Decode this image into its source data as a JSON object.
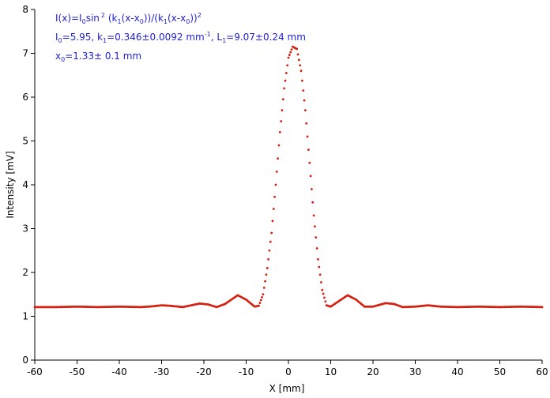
{
  "chart_data": {
    "type": "scatter",
    "title": "",
    "xlabel": "X [mm]",
    "ylabel": "Intensity [mV]",
    "xlim": [
      -60,
      60
    ],
    "ylim": [
      0,
      8
    ],
    "x_ticks": [
      -60,
      -50,
      -40,
      -30,
      -20,
      -10,
      0,
      10,
      20,
      30,
      40,
      50,
      60
    ],
    "y_ticks": [
      0,
      1,
      2,
      3,
      4,
      5,
      6,
      7,
      8
    ],
    "grid": false,
    "legend": "none",
    "series": [
      {
        "color": "#d42010",
        "marker": "dot",
        "baseline": 1.2,
        "peak": 7.15,
        "points": [
          [
            -60,
            1.21
          ],
          [
            -55,
            1.21
          ],
          [
            -50,
            1.22
          ],
          [
            -45,
            1.21
          ],
          [
            -40,
            1.22
          ],
          [
            -35,
            1.21
          ],
          [
            -33,
            1.22
          ],
          [
            -30,
            1.25
          ],
          [
            -28,
            1.24
          ],
          [
            -25,
            1.21
          ],
          [
            -23,
            1.25
          ],
          [
            -21,
            1.29
          ],
          [
            -19,
            1.27
          ],
          [
            -17,
            1.21
          ],
          [
            -15,
            1.28
          ],
          [
            -12,
            1.48
          ],
          [
            -10,
            1.38
          ],
          [
            -8,
            1.22
          ],
          [
            -7,
            1.24
          ],
          [
            -6,
            1.5
          ],
          [
            -5,
            2.1
          ],
          [
            -4,
            2.9
          ],
          [
            -3,
            4.0
          ],
          [
            -2,
            5.2
          ],
          [
            -1,
            6.2
          ],
          [
            0,
            6.9
          ],
          [
            1,
            7.15
          ],
          [
            2,
            7.1
          ],
          [
            3,
            6.6
          ],
          [
            4,
            5.7
          ],
          [
            5,
            4.5
          ],
          [
            6,
            3.3
          ],
          [
            7,
            2.3
          ],
          [
            8,
            1.6
          ],
          [
            9,
            1.25
          ],
          [
            10,
            1.22
          ],
          [
            12,
            1.35
          ],
          [
            14,
            1.48
          ],
          [
            16,
            1.38
          ],
          [
            18,
            1.22
          ],
          [
            20,
            1.22
          ],
          [
            23,
            1.3
          ],
          [
            25,
            1.28
          ],
          [
            27,
            1.21
          ],
          [
            30,
            1.22
          ],
          [
            33,
            1.25
          ],
          [
            36,
            1.22
          ],
          [
            40,
            1.21
          ],
          [
            45,
            1.22
          ],
          [
            50,
            1.21
          ],
          [
            55,
            1.22
          ],
          [
            60,
            1.21
          ]
        ]
      }
    ],
    "annotation": {
      "line1": {
        "a": "I(x)=I",
        "a_sub": "0",
        "b": "sin",
        "b_sup": "2",
        "c": " (k",
        "c_sub": "1",
        "d": "(x-x",
        "d_sub": "0",
        "e": "))/(k",
        "e_sub": "1",
        "f": "(x-x",
        "f_sub": "0",
        "g": "))",
        "g_sup": "2"
      },
      "line2": {
        "a": "I",
        "a_sub": "0",
        "b": "=5.95,  k",
        "b_sub": "1",
        "c": "=0.346±0.0092 mm",
        "c_sup": "-1",
        "d": ",   L",
        "d_sub": "1",
        "e": "=9.07±0.24 mm"
      },
      "line3": {
        "a": "x",
        "a_sub": "0",
        "b": "=1.33±  0.1 mm"
      },
      "color": "#1f1fd6"
    }
  }
}
